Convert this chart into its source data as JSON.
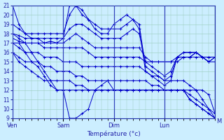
{
  "background_color": "#cceeff",
  "grid_color": "#99ccbb",
  "line_color": "#0000cc",
  "xlabel": "Température (°c)",
  "ylim": [
    9,
    21
  ],
  "yticks": [
    9,
    10,
    11,
    12,
    13,
    14,
    15,
    16,
    17,
    18,
    19,
    20,
    21
  ],
  "x_day_labels": [
    "Ven",
    "Sam",
    "Dim",
    "Lun",
    "M"
  ],
  "x_day_positions": [
    0,
    24,
    48,
    72,
    96
  ],
  "xlim": [
    0,
    100
  ],
  "line_series": [
    [
      [
        0,
        21
      ],
      [
        3,
        19
      ],
      [
        6,
        18
      ],
      [
        9,
        17.5
      ],
      [
        12,
        17.5
      ],
      [
        15,
        17
      ],
      [
        18,
        17.2
      ],
      [
        21,
        17
      ],
      [
        24,
        17.5
      ],
      [
        27,
        21
      ],
      [
        30,
        21
      ],
      [
        33,
        20
      ],
      [
        36,
        19.5
      ],
      [
        39,
        18.5
      ],
      [
        42,
        18
      ],
      [
        45,
        18
      ],
      [
        48,
        19
      ],
      [
        51,
        19.5
      ],
      [
        54,
        20
      ],
      [
        57,
        19.5
      ],
      [
        60,
        18.5
      ],
      [
        63,
        14
      ],
      [
        66,
        13.5
      ],
      [
        69,
        13
      ],
      [
        72,
        12.5
      ],
      [
        75,
        13
      ],
      [
        78,
        15.5
      ],
      [
        81,
        15.5
      ],
      [
        84,
        15.5
      ],
      [
        87,
        16
      ],
      [
        90,
        15.5
      ],
      [
        93,
        15
      ],
      [
        96,
        15
      ]
    ],
    [
      [
        0,
        19
      ],
      [
        3,
        18.5
      ],
      [
        6,
        18
      ],
      [
        9,
        18
      ],
      [
        12,
        18
      ],
      [
        15,
        18
      ],
      [
        18,
        18
      ],
      [
        21,
        18
      ],
      [
        24,
        18
      ],
      [
        27,
        20
      ],
      [
        30,
        21
      ],
      [
        33,
        20.5
      ],
      [
        36,
        19.5
      ],
      [
        39,
        19
      ],
      [
        42,
        18.5
      ],
      [
        45,
        18.5
      ],
      [
        48,
        18.5
      ],
      [
        51,
        18.5
      ],
      [
        54,
        19
      ],
      [
        57,
        19.5
      ],
      [
        60,
        19
      ],
      [
        63,
        14.5
      ],
      [
        66,
        14
      ],
      [
        69,
        13.5
      ],
      [
        72,
        13
      ],
      [
        75,
        13.5
      ],
      [
        78,
        15.5
      ],
      [
        81,
        16
      ],
      [
        84,
        16
      ],
      [
        87,
        16
      ],
      [
        90,
        15.5
      ],
      [
        93,
        15
      ],
      [
        96,
        15.5
      ]
    ],
    [
      [
        0,
        18
      ],
      [
        3,
        17.8
      ],
      [
        6,
        17.5
      ],
      [
        9,
        17.5
      ],
      [
        12,
        17.5
      ],
      [
        15,
        17.5
      ],
      [
        18,
        17.5
      ],
      [
        21,
        17.5
      ],
      [
        24,
        17.5
      ],
      [
        27,
        18.5
      ],
      [
        30,
        19
      ],
      [
        33,
        19
      ],
      [
        36,
        18.5
      ],
      [
        39,
        18
      ],
      [
        42,
        17.5
      ],
      [
        45,
        17.5
      ],
      [
        48,
        17.5
      ],
      [
        51,
        17.5
      ],
      [
        54,
        18
      ],
      [
        57,
        18.5
      ],
      [
        60,
        18
      ],
      [
        63,
        15
      ],
      [
        66,
        14.5
      ],
      [
        69,
        14
      ],
      [
        72,
        13.5
      ],
      [
        75,
        14
      ],
      [
        78,
        15.5
      ],
      [
        81,
        16
      ],
      [
        84,
        16
      ],
      [
        87,
        16
      ],
      [
        90,
        15.5
      ],
      [
        93,
        15
      ],
      [
        96,
        15.5
      ]
    ],
    [
      [
        0,
        17.5
      ],
      [
        3,
        17.2
      ],
      [
        6,
        17
      ],
      [
        9,
        17
      ],
      [
        12,
        17
      ],
      [
        15,
        17
      ],
      [
        18,
        17
      ],
      [
        21,
        17
      ],
      [
        24,
        17
      ],
      [
        27,
        17.5
      ],
      [
        30,
        18
      ],
      [
        33,
        17.5
      ],
      [
        36,
        17
      ],
      [
        39,
        16.5
      ],
      [
        42,
        16.5
      ],
      [
        45,
        16.5
      ],
      [
        48,
        16.5
      ],
      [
        51,
        16.5
      ],
      [
        54,
        16.5
      ],
      [
        57,
        16.5
      ],
      [
        60,
        16.5
      ],
      [
        63,
        15.5
      ],
      [
        66,
        15
      ],
      [
        69,
        15
      ],
      [
        72,
        15
      ],
      [
        75,
        15
      ],
      [
        78,
        15.5
      ],
      [
        81,
        15.5
      ],
      [
        84,
        15.5
      ],
      [
        87,
        16
      ],
      [
        90,
        15.5
      ],
      [
        93,
        15.5
      ],
      [
        96,
        15.5
      ]
    ],
    [
      [
        0,
        17
      ],
      [
        3,
        17
      ],
      [
        6,
        17
      ],
      [
        9,
        17
      ],
      [
        12,
        17
      ],
      [
        15,
        16.5
      ],
      [
        18,
        16.5
      ],
      [
        21,
        16.5
      ],
      [
        24,
        16.5
      ],
      [
        27,
        16.5
      ],
      [
        30,
        16.5
      ],
      [
        33,
        16.5
      ],
      [
        36,
        16
      ],
      [
        39,
        15.5
      ],
      [
        42,
        15.5
      ],
      [
        45,
        15.5
      ],
      [
        48,
        15.5
      ],
      [
        51,
        15.5
      ],
      [
        54,
        15.5
      ],
      [
        57,
        15.5
      ],
      [
        60,
        15.5
      ],
      [
        63,
        15
      ],
      [
        66,
        15
      ],
      [
        69,
        15
      ],
      [
        72,
        15
      ],
      [
        75,
        15
      ],
      [
        78,
        15
      ],
      [
        81,
        15.5
      ],
      [
        84,
        15.5
      ],
      [
        87,
        15.5
      ],
      [
        90,
        15.5
      ],
      [
        93,
        15.5
      ],
      [
        96,
        15.5
      ]
    ],
    [
      [
        0,
        17
      ],
      [
        3,
        16.5
      ],
      [
        6,
        16
      ],
      [
        9,
        16
      ],
      [
        12,
        16
      ],
      [
        15,
        15.5
      ],
      [
        18,
        15.5
      ],
      [
        21,
        15.5
      ],
      [
        24,
        15
      ],
      [
        27,
        15
      ],
      [
        30,
        15
      ],
      [
        33,
        14.5
      ],
      [
        36,
        14.5
      ],
      [
        39,
        14.5
      ],
      [
        42,
        14.5
      ],
      [
        45,
        14.5
      ],
      [
        48,
        14.5
      ],
      [
        51,
        14.5
      ],
      [
        54,
        14.5
      ],
      [
        57,
        14.5
      ],
      [
        60,
        14.5
      ],
      [
        63,
        14
      ],
      [
        66,
        13.5
      ],
      [
        69,
        13.5
      ],
      [
        72,
        13
      ],
      [
        75,
        13
      ],
      [
        78,
        13
      ],
      [
        81,
        13
      ],
      [
        84,
        12.5
      ],
      [
        87,
        12
      ],
      [
        90,
        12
      ],
      [
        93,
        11.5
      ],
      [
        96,
        9.5
      ]
    ],
    [
      [
        0,
        16
      ],
      [
        3,
        15.5
      ],
      [
        6,
        15
      ],
      [
        9,
        15
      ],
      [
        12,
        15
      ],
      [
        15,
        14.5
      ],
      [
        18,
        14.5
      ],
      [
        21,
        14
      ],
      [
        24,
        14
      ],
      [
        27,
        14
      ],
      [
        30,
        13.5
      ],
      [
        33,
        13.5
      ],
      [
        36,
        13
      ],
      [
        39,
        13
      ],
      [
        42,
        13
      ],
      [
        45,
        13
      ],
      [
        48,
        13
      ],
      [
        51,
        13
      ],
      [
        54,
        13
      ],
      [
        57,
        13
      ],
      [
        60,
        13
      ],
      [
        63,
        13
      ],
      [
        66,
        12.5
      ],
      [
        69,
        12.5
      ],
      [
        72,
        12
      ],
      [
        75,
        12
      ],
      [
        78,
        12
      ],
      [
        81,
        12
      ],
      [
        84,
        12
      ],
      [
        87,
        12
      ],
      [
        90,
        11
      ],
      [
        93,
        10
      ],
      [
        96,
        9.5
      ]
    ],
    [
      [
        0,
        16
      ],
      [
        3,
        15
      ],
      [
        6,
        14.5
      ],
      [
        9,
        14
      ],
      [
        12,
        13.5
      ],
      [
        15,
        13
      ],
      [
        18,
        13
      ],
      [
        21,
        13
      ],
      [
        24,
        13
      ],
      [
        27,
        13
      ],
      [
        30,
        12.5
      ],
      [
        33,
        12.5
      ],
      [
        36,
        12
      ],
      [
        39,
        12
      ],
      [
        42,
        12
      ],
      [
        45,
        12
      ],
      [
        48,
        12
      ],
      [
        51,
        12
      ],
      [
        54,
        12
      ],
      [
        57,
        12
      ],
      [
        60,
        12
      ],
      [
        63,
        12
      ],
      [
        66,
        12
      ],
      [
        69,
        12
      ],
      [
        72,
        12
      ],
      [
        75,
        12
      ],
      [
        78,
        12
      ],
      [
        81,
        12
      ],
      [
        84,
        11.5
      ],
      [
        87,
        11
      ],
      [
        90,
        10.5
      ],
      [
        93,
        10
      ],
      [
        96,
        9
      ]
    ],
    [
      [
        0,
        17
      ],
      [
        3,
        17
      ],
      [
        6,
        16
      ],
      [
        9,
        15
      ],
      [
        12,
        14.5
      ],
      [
        15,
        13.5
      ],
      [
        18,
        12.5
      ],
      [
        21,
        12
      ],
      [
        24,
        12
      ],
      [
        27,
        12
      ],
      [
        30,
        12
      ],
      [
        33,
        12
      ],
      [
        36,
        12
      ],
      [
        39,
        12
      ],
      [
        42,
        12
      ],
      [
        45,
        12
      ],
      [
        48,
        12
      ],
      [
        51,
        12
      ],
      [
        54,
        12
      ],
      [
        57,
        12
      ],
      [
        60,
        12
      ],
      [
        63,
        12
      ],
      [
        66,
        12
      ],
      [
        69,
        12
      ],
      [
        72,
        12
      ],
      [
        75,
        12
      ],
      [
        78,
        12
      ],
      [
        81,
        12
      ],
      [
        84,
        11
      ],
      [
        87,
        10.5
      ],
      [
        90,
        10
      ],
      [
        93,
        9.5
      ],
      [
        96,
        9
      ]
    ],
    [
      [
        0,
        18
      ],
      [
        3,
        17.5
      ],
      [
        6,
        17
      ],
      [
        9,
        16
      ],
      [
        12,
        15
      ],
      [
        15,
        14
      ],
      [
        18,
        13
      ],
      [
        21,
        12
      ],
      [
        24,
        12
      ],
      [
        27,
        9
      ],
      [
        30,
        9
      ],
      [
        33,
        9.5
      ],
      [
        36,
        10
      ],
      [
        39,
        12
      ],
      [
        42,
        12.5
      ],
      [
        45,
        13
      ],
      [
        48,
        12
      ],
      [
        51,
        12
      ],
      [
        54,
        12
      ],
      [
        57,
        12
      ],
      [
        60,
        12
      ],
      [
        63,
        12
      ],
      [
        66,
        12
      ],
      [
        69,
        12
      ],
      [
        72,
        12
      ],
      [
        75,
        12
      ],
      [
        78,
        12
      ],
      [
        81,
        12
      ],
      [
        84,
        11
      ],
      [
        87,
        10.5
      ],
      [
        90,
        10
      ],
      [
        93,
        9.5
      ],
      [
        96,
        9
      ]
    ]
  ]
}
